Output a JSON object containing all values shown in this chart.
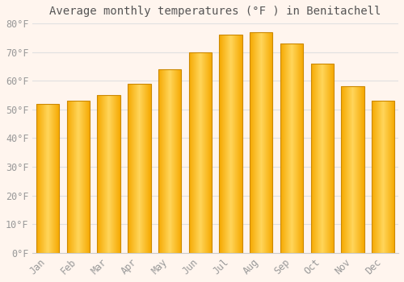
{
  "months": [
    "Jan",
    "Feb",
    "Mar",
    "Apr",
    "May",
    "Jun",
    "Jul",
    "Aug",
    "Sep",
    "Oct",
    "Nov",
    "Dec"
  ],
  "values": [
    52,
    53,
    55,
    59,
    64,
    70,
    76,
    77,
    73,
    66,
    58,
    53
  ],
  "bar_color_light": "#FFD55A",
  "bar_color_dark": "#F5A800",
  "bar_edge_color": "#CC8800",
  "title": "Average monthly temperatures (°F ) in Benitachell",
  "ylim": [
    0,
    80
  ],
  "yticks": [
    0,
    10,
    20,
    30,
    40,
    50,
    60,
    70,
    80
  ],
  "ytick_labels": [
    "0°F",
    "10°F",
    "20°F",
    "30°F",
    "40°F",
    "50°F",
    "60°F",
    "70°F",
    "80°F"
  ],
  "background_color": "#FFF5EE",
  "plot_bg_color": "#FFF5EE",
  "grid_color": "#e0e0e0",
  "title_fontsize": 10,
  "tick_fontsize": 8.5,
  "bar_width": 0.75
}
